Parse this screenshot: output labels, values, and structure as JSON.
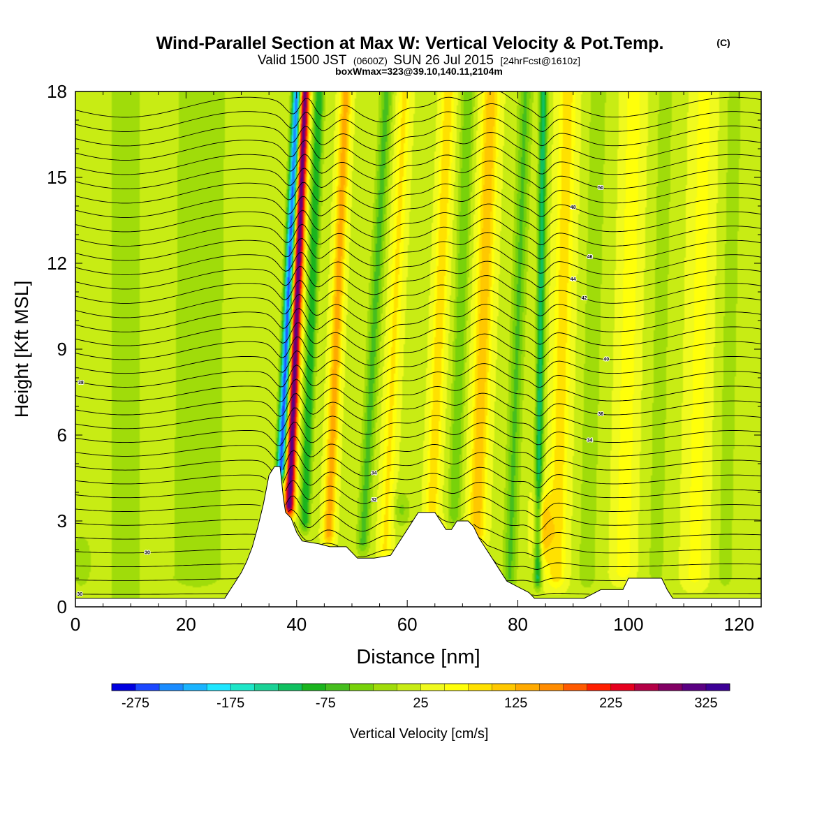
{
  "titles": {
    "line1": "Wind-Parallel Section at Max W: Vertical Velocity & Pot.Temp.",
    "copyright": "(C)",
    "line2_a": "Valid 1500 JST",
    "line2_b": "(0600Z)",
    "line2_c": "SUN 26 Jul 2015",
    "line2_d": "[24hrFcst@1610z]",
    "line3": "boxWmax=323@39.10,140.11,2104m"
  },
  "chart_data": {
    "type": "heatmap",
    "title": "Wind-Parallel Section at Max W: Vertical Velocity & Pot.Temp.",
    "xlabel": "Distance [nm]",
    "ylabel": "Height [Kft MSL]",
    "xlim": [
      0,
      124
    ],
    "ylim": [
      0,
      18
    ],
    "x_ticks": [
      "0",
      "20",
      "40",
      "60",
      "80",
      "100",
      "120"
    ],
    "y_ticks": [
      "0",
      "3",
      "6",
      "9",
      "12",
      "15",
      "18"
    ],
    "colorbar": {
      "label": "Vertical Velocity [cm/s]",
      "range": [
        -300,
        350
      ],
      "step": 25,
      "tick_labels": [
        "-275",
        "-175",
        "-75",
        "25",
        "125",
        "225",
        "325"
      ],
      "colors": [
        "#0000e0",
        "#1c48ff",
        "#1a8cff",
        "#1ab4ff",
        "#1ee6ff",
        "#1ee6c8",
        "#1ad296",
        "#10c060",
        "#1ab41e",
        "#46be1e",
        "#78d20a",
        "#a0dc0a",
        "#c8ec14",
        "#f0fa1e",
        "#ffff0a",
        "#ffe100",
        "#ffc800",
        "#ffaa00",
        "#ff8c00",
        "#ff5a00",
        "#ff1e00",
        "#e6001e",
        "#b40046",
        "#820064",
        "#5a0082",
        "#3c0096"
      ]
    },
    "terrain_kft": [
      [
        0,
        0.3
      ],
      [
        27,
        0.3
      ],
      [
        28,
        0.6
      ],
      [
        29,
        0.9
      ],
      [
        30,
        1.2
      ],
      [
        31,
        1.6
      ],
      [
        32,
        2.1
      ],
      [
        33,
        2.8
      ],
      [
        34,
        3.6
      ],
      [
        35,
        4.6
      ],
      [
        36,
        4.9
      ],
      [
        37,
        4.9
      ],
      [
        37.6,
        3.8
      ],
      [
        38,
        3.3
      ],
      [
        39,
        3.1
      ],
      [
        40,
        2.6
      ],
      [
        41,
        2.3
      ],
      [
        44,
        2.2
      ],
      [
        46,
        2.1
      ],
      [
        49,
        2.1
      ],
      [
        50,
        1.9
      ],
      [
        51,
        1.7
      ],
      [
        54,
        1.7
      ],
      [
        57,
        1.8
      ],
      [
        58,
        2.1
      ],
      [
        59,
        2.4
      ],
      [
        60,
        2.7
      ],
      [
        61,
        3.0
      ],
      [
        62,
        3.3
      ],
      [
        65,
        3.3
      ],
      [
        66,
        3.0
      ],
      [
        67,
        2.7
      ],
      [
        68,
        2.7
      ],
      [
        69,
        3.0
      ],
      [
        71,
        3.0
      ],
      [
        72,
        2.8
      ],
      [
        73,
        2.4
      ],
      [
        74,
        2.1
      ],
      [
        75,
        1.8
      ],
      [
        76,
        1.5
      ],
      [
        77,
        1.2
      ],
      [
        78,
        0.9
      ],
      [
        80,
        0.7
      ],
      [
        81,
        0.6
      ],
      [
        82,
        0.5
      ],
      [
        83,
        0.3
      ],
      [
        85,
        0.3
      ],
      [
        92,
        0.3
      ],
      [
        95,
        0.6
      ],
      [
        99,
        0.6
      ],
      [
        100,
        1.0
      ],
      [
        106,
        1.0
      ],
      [
        107,
        0.6
      ],
      [
        108,
        0.3
      ],
      [
        124,
        0.3
      ]
    ],
    "w_features": [
      {
        "x": 37.2,
        "y0": 4.8,
        "lean": 0.22,
        "amp": -290,
        "width": 0.8
      },
      {
        "x": 38.7,
        "y0": 3.5,
        "lean": 0.19,
        "amp": 300,
        "width": 0.9
      },
      {
        "x": 41.5,
        "y0": 3.0,
        "lean": 0.17,
        "amp": -120,
        "width": 0.9
      },
      {
        "x": 45.8,
        "y0": 2.5,
        "lean": 0.2,
        "amp": 120,
        "width": 1.0
      },
      {
        "x": 52.0,
        "y0": 2.2,
        "lean": 0.27,
        "amp": -80,
        "width": 1.1
      },
      {
        "x": 56.0,
        "y0": 2.0,
        "lean": 0.22,
        "amp": 60,
        "width": 1.2
      },
      {
        "x": 64.5,
        "y0": 3.4,
        "lean": 0.2,
        "amp": 75,
        "width": 1.2
      },
      {
        "x": 68.5,
        "y0": 3.2,
        "lean": 0.17,
        "amp": -70,
        "width": 1.1
      },
      {
        "x": 72.5,
        "y0": 2.5,
        "lean": 0.17,
        "amp": 100,
        "width": 1.5
      },
      {
        "x": 78.5,
        "y0": 1.0,
        "lean": 0.17,
        "amp": -75,
        "width": 1.2
      },
      {
        "x": 83.6,
        "y0": 1.0,
        "lean": 0.06,
        "amp": -140,
        "width": 0.7
      },
      {
        "x": 87.0,
        "y0": 1.0,
        "lean": 0.12,
        "amp": 70,
        "width": 1.6
      },
      {
        "x": 92.5,
        "y0": 1.0,
        "lean": 0.12,
        "amp": -45,
        "width": 1.5
      },
      {
        "x": 99.0,
        "y0": 1.2,
        "lean": 0.12,
        "amp": 45,
        "width": 1.8
      },
      {
        "x": 105.0,
        "y0": 1.2,
        "lean": 0.1,
        "amp": -40,
        "width": 1.4
      },
      {
        "x": 112.0,
        "y0": 1.0,
        "lean": 0.1,
        "amp": 40,
        "width": 2.0
      },
      {
        "x": 117.5,
        "y0": 1.0,
        "lean": 0.1,
        "amp": -35,
        "width": 1.5
      },
      {
        "x": 22.0,
        "y0": 1.0,
        "lean": 0.05,
        "amp": -40,
        "width": 5.0
      },
      {
        "x": 9.0,
        "y0": 0.0,
        "lean": 0.0,
        "amp": -30,
        "width": 4.0
      }
    ],
    "w_blobs": [
      {
        "x": 84.5,
        "y": 2.8,
        "sx": 1.6,
        "sy": 1.3,
        "amp": 110
      },
      {
        "x": 66.5,
        "y": 1.8,
        "sx": 0.8,
        "sy": 0.9,
        "amp": 70
      },
      {
        "x": 59.0,
        "y": 3.4,
        "sx": 1.5,
        "sy": 0.6,
        "amp": -50
      },
      {
        "x": 1.0,
        "y": 1.6,
        "sx": 2.0,
        "sy": 1.0,
        "amp": -40
      }
    ],
    "theta_lines": [
      {
        "base": 0.45,
        "label": "30"
      },
      {
        "base": 0.95
      },
      {
        "base": 1.45
      },
      {
        "base": 1.95,
        "label": "30"
      },
      {
        "base": 2.45
      },
      {
        "base": 2.95
      },
      {
        "base": 3.45
      },
      {
        "base": 3.95,
        "label": "32"
      },
      {
        "base": 4.45
      },
      {
        "base": 4.95,
        "label": "34"
      },
      {
        "base": 5.45
      },
      {
        "base": 5.95,
        "label": "34"
      },
      {
        "base": 6.45
      },
      {
        "base": 6.95,
        "label": "36"
      },
      {
        "base": 7.45
      },
      {
        "base": 7.95,
        "label": "38"
      },
      {
        "base": 8.45
      },
      {
        "base": 8.95,
        "label": "40"
      },
      {
        "base": 9.45
      },
      {
        "base": 9.95
      },
      {
        "base": 10.45
      },
      {
        "base": 10.95,
        "label": "42"
      },
      {
        "base": 11.45,
        "label": "44"
      },
      {
        "base": 11.95
      },
      {
        "base": 12.45,
        "label": "46"
      },
      {
        "base": 12.95
      },
      {
        "base": 13.45
      },
      {
        "base": 13.95,
        "label": "48"
      },
      {
        "base": 14.45
      },
      {
        "base": 14.95,
        "label": "50"
      },
      {
        "base": 15.45
      },
      {
        "base": 15.95
      },
      {
        "base": 16.45
      },
      {
        "base": 16.95
      },
      {
        "base": 17.45
      }
    ]
  }
}
